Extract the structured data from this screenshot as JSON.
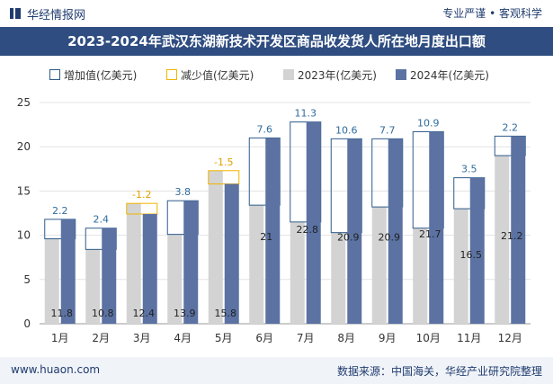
{
  "header": {
    "brand": "华经情报网",
    "tagline": "专业严谨 • 客观科学"
  },
  "title": "2023-2024年武汉东湖新技术开发区商品收发货人所在地月度出口额",
  "legend": {
    "increase": "增加值(亿美元)",
    "decrease": "减少值(亿美元)",
    "y2023": "2023年(亿美元)",
    "y2024": "2024年(亿美元)"
  },
  "footer": {
    "website": "www.huaon.com",
    "source": "数据来源：中国海关，华经产业研究院整理"
  },
  "colors": {
    "title_bg": "#2f4d80",
    "bar_2023": "#d3d3d3",
    "bar_2024": "#5b72a3",
    "increase_border": "#2e5b8a",
    "decrease_border": "#f0b400",
    "increase_label": "#2e6b9e",
    "decrease_label": "#e0a000"
  },
  "chart_data": {
    "type": "bar",
    "categories": [
      "1月",
      "2月",
      "3月",
      "4月",
      "5月",
      "6月",
      "7月",
      "8月",
      "9月",
      "10月",
      "11月",
      "12月"
    ],
    "series": [
      {
        "name": "2023年(亿美元)",
        "values": [
          9.6,
          8.4,
          13.6,
          10.1,
          17.3,
          13.4,
          11.5,
          10.3,
          13.2,
          10.8,
          13.0,
          19.0
        ]
      },
      {
        "name": "2024年(亿美元)",
        "values": [
          11.8,
          10.8,
          12.4,
          13.9,
          15.8,
          21,
          22.8,
          20.9,
          20.9,
          21.7,
          16.5,
          21.2
        ]
      }
    ],
    "change_labels": [
      "2.2",
      "2.4",
      "-1.2",
      "3.8",
      "-1.5",
      "7.6",
      "11.3",
      "10.6",
      "7.7",
      "10.9",
      "3.5",
      "2.2"
    ],
    "value_labels_2024": [
      "11.8",
      "10.8",
      "12.4",
      "13.9",
      "15.8",
      "21",
      "22.8",
      "20.9",
      "20.9",
      "21.7",
      "16.5",
      "21.2"
    ],
    "ylim": [
      0,
      25
    ],
    "yticks": [
      "0",
      "5",
      "10",
      "15",
      "20",
      "25"
    ],
    "grid": true,
    "legend_position": "top"
  }
}
